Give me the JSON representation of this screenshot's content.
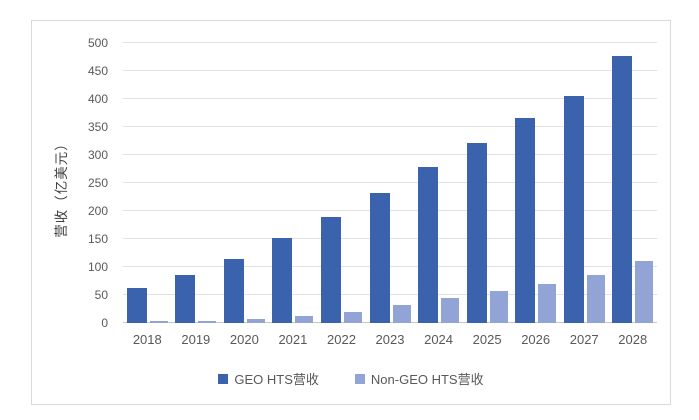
{
  "chart_data": {
    "type": "bar",
    "title": "",
    "xlabel": "",
    "ylabel": "营收（亿美元）",
    "categories": [
      "2018",
      "2019",
      "2020",
      "2021",
      "2022",
      "2023",
      "2024",
      "2025",
      "2026",
      "2027",
      "2028"
    ],
    "series": [
      {
        "name": "GEO HTS营收",
        "color": "#3A62AD",
        "values": [
          62,
          85,
          115,
          151,
          189,
          232,
          278,
          322,
          366,
          406,
          476
        ]
      },
      {
        "name": "Non-GEO HTS营收",
        "color": "#92A3D6",
        "values": [
          3,
          4,
          8,
          13,
          19,
          33,
          45,
          57,
          70,
          86,
          110
        ]
      }
    ],
    "ylim": [
      0,
      500
    ],
    "y_ticks": [
      0,
      50,
      100,
      150,
      200,
      250,
      300,
      350,
      400,
      450,
      500
    ],
    "grid": "horizontal",
    "legend_position": "bottom"
  },
  "colors": {
    "grid_line": "#e2e2e2",
    "axis_line": "#c6c6c6",
    "tick_label": "#595959",
    "frame_border": "#d9d9d9",
    "background": "#ffffff"
  }
}
